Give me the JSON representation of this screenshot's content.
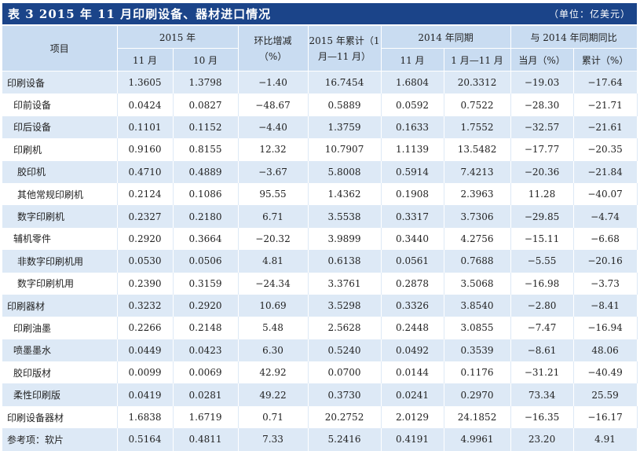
{
  "title": "表 3  2015 年 11 月印刷设备、器材进口情况",
  "unit": "（单位：亿美元）",
  "header": {
    "item": "项目",
    "group_2015": "2015 年",
    "mom": "环比增减（%）",
    "cum_2015": "2015 年累计（1 月—11 月）",
    "group_2014": "2014 年同期",
    "group_yoy": "与 2014 年同期同比",
    "nov": "11 月",
    "oct": "10 月",
    "nov_2014": "11 月",
    "cum_2014": "1 月—11 月",
    "month_pct": "当月（%）",
    "cum_pct": "累计（%）"
  },
  "rows": [
    {
      "name": "印刷设备",
      "level": 0,
      "nov": "1.3605",
      "oct": "1.3798",
      "mom": "−1.40",
      "cum2015": "16.7454",
      "nov2014": "1.6804",
      "cum2014": "20.3312",
      "month_pct": "−19.03",
      "cum_pct": "−17.64"
    },
    {
      "name": "印前设备",
      "level": 1,
      "nov": "0.0424",
      "oct": "0.0827",
      "mom": "−48.67",
      "cum2015": "0.5889",
      "nov2014": "0.0592",
      "cum2014": "0.7522",
      "month_pct": "−28.30",
      "cum_pct": "−21.71"
    },
    {
      "name": "印后设备",
      "level": 1,
      "nov": "0.1101",
      "oct": "0.1152",
      "mom": "−4.40",
      "cum2015": "1.3759",
      "nov2014": "0.1633",
      "cum2014": "1.7552",
      "month_pct": "−32.57",
      "cum_pct": "−21.61"
    },
    {
      "name": "印刷机",
      "level": 1,
      "nov": "0.9160",
      "oct": "0.8155",
      "mom": "12.32",
      "cum2015": "10.7907",
      "nov2014": "1.1139",
      "cum2014": "13.5482",
      "month_pct": "−17.77",
      "cum_pct": "−20.35"
    },
    {
      "name": "胶印机",
      "level": 2,
      "nov": "0.4710",
      "oct": "0.4889",
      "mom": "−3.67",
      "cum2015": "5.8008",
      "nov2014": "0.5914",
      "cum2014": "7.4213",
      "month_pct": "−20.36",
      "cum_pct": "−21.84"
    },
    {
      "name": "其他常规印刷机",
      "level": 2,
      "nov": "0.2124",
      "oct": "0.1086",
      "mom": "95.55",
      "cum2015": "1.4362",
      "nov2014": "0.1908",
      "cum2014": "2.3963",
      "month_pct": "11.28",
      "cum_pct": "−40.07"
    },
    {
      "name": "数字印刷机",
      "level": 2,
      "nov": "0.2327",
      "oct": "0.2180",
      "mom": "6.71",
      "cum2015": "3.5538",
      "nov2014": "0.3317",
      "cum2014": "3.7306",
      "month_pct": "−29.85",
      "cum_pct": "−4.74"
    },
    {
      "name": "辅机零件",
      "level": 1,
      "nov": "0.2920",
      "oct": "0.3664",
      "mom": "−20.32",
      "cum2015": "3.9899",
      "nov2014": "0.3440",
      "cum2014": "4.2756",
      "month_pct": "−15.11",
      "cum_pct": "−6.68"
    },
    {
      "name": "非数字印刷机用",
      "level": 2,
      "nov": "0.0530",
      "oct": "0.0506",
      "mom": "4.81",
      "cum2015": "0.6138",
      "nov2014": "0.0561",
      "cum2014": "0.7688",
      "month_pct": "−5.55",
      "cum_pct": "−20.16"
    },
    {
      "name": "数字印刷机用",
      "level": 2,
      "nov": "0.2390",
      "oct": "0.3159",
      "mom": "−24.34",
      "cum2015": "3.3761",
      "nov2014": "0.2878",
      "cum2014": "3.5068",
      "month_pct": "−16.98",
      "cum_pct": "−3.73"
    },
    {
      "name": "印刷器材",
      "level": 0,
      "nov": "0.3232",
      "oct": "0.2920",
      "mom": "10.69",
      "cum2015": "3.5298",
      "nov2014": "0.3326",
      "cum2014": "3.8540",
      "month_pct": "−2.80",
      "cum_pct": "−8.41"
    },
    {
      "name": "印刷油墨",
      "level": 1,
      "nov": "0.2266",
      "oct": "0.2148",
      "mom": "5.48",
      "cum2015": "2.5628",
      "nov2014": "0.2448",
      "cum2014": "3.0855",
      "month_pct": "−7.47",
      "cum_pct": "−16.94"
    },
    {
      "name": "喷墨墨水",
      "level": 1,
      "nov": "0.0449",
      "oct": "0.0423",
      "mom": "6.30",
      "cum2015": "0.5240",
      "nov2014": "0.0492",
      "cum2014": "0.3539",
      "month_pct": "−8.61",
      "cum_pct": "48.06"
    },
    {
      "name": "胶印版材",
      "level": 1,
      "nov": "0.0099",
      "oct": "0.0069",
      "mom": "42.92",
      "cum2015": "0.0700",
      "nov2014": "0.0144",
      "cum2014": "0.1176",
      "month_pct": "−31.21",
      "cum_pct": "−40.49"
    },
    {
      "name": "柔性印刷版",
      "level": 1,
      "nov": "0.0419",
      "oct": "0.0281",
      "mom": "49.22",
      "cum2015": "0.3730",
      "nov2014": "0.0241",
      "cum2014": "0.2970",
      "month_pct": "73.34",
      "cum_pct": "25.59"
    },
    {
      "name": "印刷设备器材",
      "level": 0,
      "nov": "1.6838",
      "oct": "1.6719",
      "mom": "0.71",
      "cum2015": "20.2752",
      "nov2014": "2.0129",
      "cum2014": "24.1852",
      "month_pct": "−16.35",
      "cum_pct": "−16.17"
    },
    {
      "name": "参考项：软片",
      "level": 0,
      "nov": "0.5164",
      "oct": "0.4811",
      "mom": "7.33",
      "cum2015": "5.2416",
      "nov2014": "0.4191",
      "cum2014": "4.9961",
      "month_pct": "23.20",
      "cum_pct": "4.91"
    }
  ]
}
